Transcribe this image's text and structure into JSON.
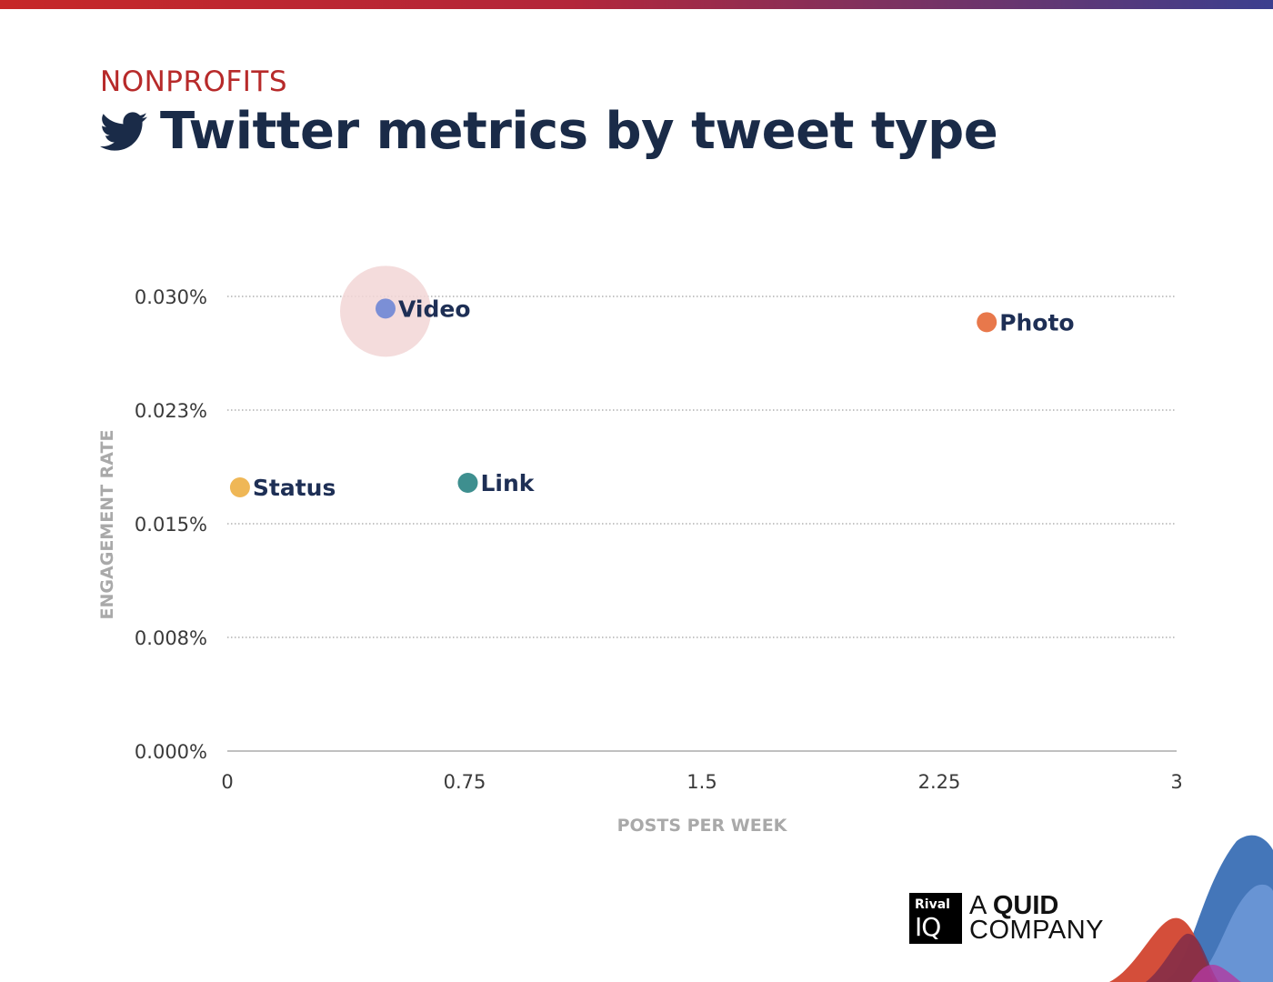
{
  "header": {
    "category": "NONPROFITS",
    "title": "Twitter metrics by tweet type",
    "icon": "twitter-bird-icon"
  },
  "brand": {
    "box_line1": "Rival",
    "box_line2": "IQ",
    "text_prefix": "A",
    "text_bold": "QUID",
    "text_line2": "COMPANY"
  },
  "colors": {
    "accent": "#b72a2a",
    "title": "#1a2b48",
    "label": "#1e2f55",
    "highlight": "#f2d6d6"
  },
  "chart_data": {
    "type": "scatter",
    "xlabel": "POSTS PER WEEK",
    "ylabel": "ENGAGEMENT RATE",
    "xlim": [
      0,
      3
    ],
    "ylim": [
      0,
      0.03
    ],
    "x_ticks": [
      0,
      0.75,
      1.5,
      2.25,
      3
    ],
    "x_tick_labels": [
      "0",
      "0.75",
      "1.5",
      "2.25",
      "3"
    ],
    "y_ticks": [
      0,
      0.0075,
      0.015,
      0.0225,
      0.03
    ],
    "y_tick_labels": [
      "0.000%",
      "0.008%",
      "0.015%",
      "0.023%",
      "0.030%"
    ],
    "grid": "horizontal-dotted",
    "points": [
      {
        "label": "Video",
        "x": 0.5,
        "y": 0.0292,
        "color": "#7b8fd6",
        "highlight": true
      },
      {
        "label": "Photo",
        "x": 2.4,
        "y": 0.0283,
        "color": "#e8784b",
        "highlight": false
      },
      {
        "label": "Status",
        "x": 0.04,
        "y": 0.0174,
        "color": "#efb756",
        "highlight": false
      },
      {
        "label": "Link",
        "x": 0.76,
        "y": 0.0177,
        "color": "#3e8f8f",
        "highlight": false
      }
    ]
  }
}
